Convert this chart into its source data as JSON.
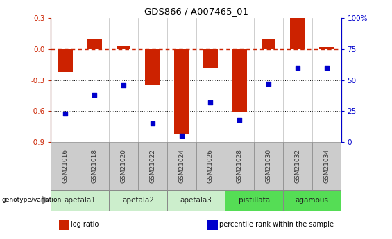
{
  "title": "GDS866 / A007465_01",
  "samples": [
    "GSM21016",
    "GSM21018",
    "GSM21020",
    "GSM21022",
    "GSM21024",
    "GSM21026",
    "GSM21028",
    "GSM21030",
    "GSM21032",
    "GSM21034"
  ],
  "log_ratio": [
    -0.22,
    0.1,
    0.03,
    -0.35,
    -0.82,
    -0.18,
    -0.61,
    0.09,
    0.3,
    0.02
  ],
  "percentile_rank": [
    23,
    38,
    46,
    15,
    5,
    32,
    18,
    47,
    60,
    60
  ],
  "ylim_left": [
    -0.9,
    0.3
  ],
  "ylim_right": [
    0,
    100
  ],
  "yticks_left": [
    -0.9,
    -0.6,
    -0.3,
    0.0,
    0.3
  ],
  "yticks_right": [
    0,
    25,
    50,
    75,
    100
  ],
  "ytick_labels_right": [
    "0",
    "25",
    "50",
    "75",
    "100%"
  ],
  "hlines": [
    -0.3,
    -0.6
  ],
  "bar_color": "#CC2200",
  "dot_color": "#0000CC",
  "zero_line_color": "#CC2200",
  "hline_color": "#000000",
  "groups": [
    {
      "label": "apetala1",
      "start": 0,
      "end": 2,
      "color": "#CCEECC"
    },
    {
      "label": "apetala2",
      "start": 2,
      "end": 4,
      "color": "#CCEECC"
    },
    {
      "label": "apetala3",
      "start": 4,
      "end": 6,
      "color": "#CCEECC"
    },
    {
      "label": "pistillata",
      "start": 6,
      "end": 8,
      "color": "#55DD55"
    },
    {
      "label": "agamous",
      "start": 8,
      "end": 10,
      "color": "#55DD55"
    }
  ],
  "sample_box_color": "#CCCCCC",
  "legend_items": [
    {
      "label": "log ratio",
      "color": "#CC2200"
    },
    {
      "label": "percentile rank within the sample",
      "color": "#0000CC"
    }
  ],
  "bar_width": 0.5,
  "figsize": [
    5.65,
    3.45
  ],
  "dpi": 100
}
